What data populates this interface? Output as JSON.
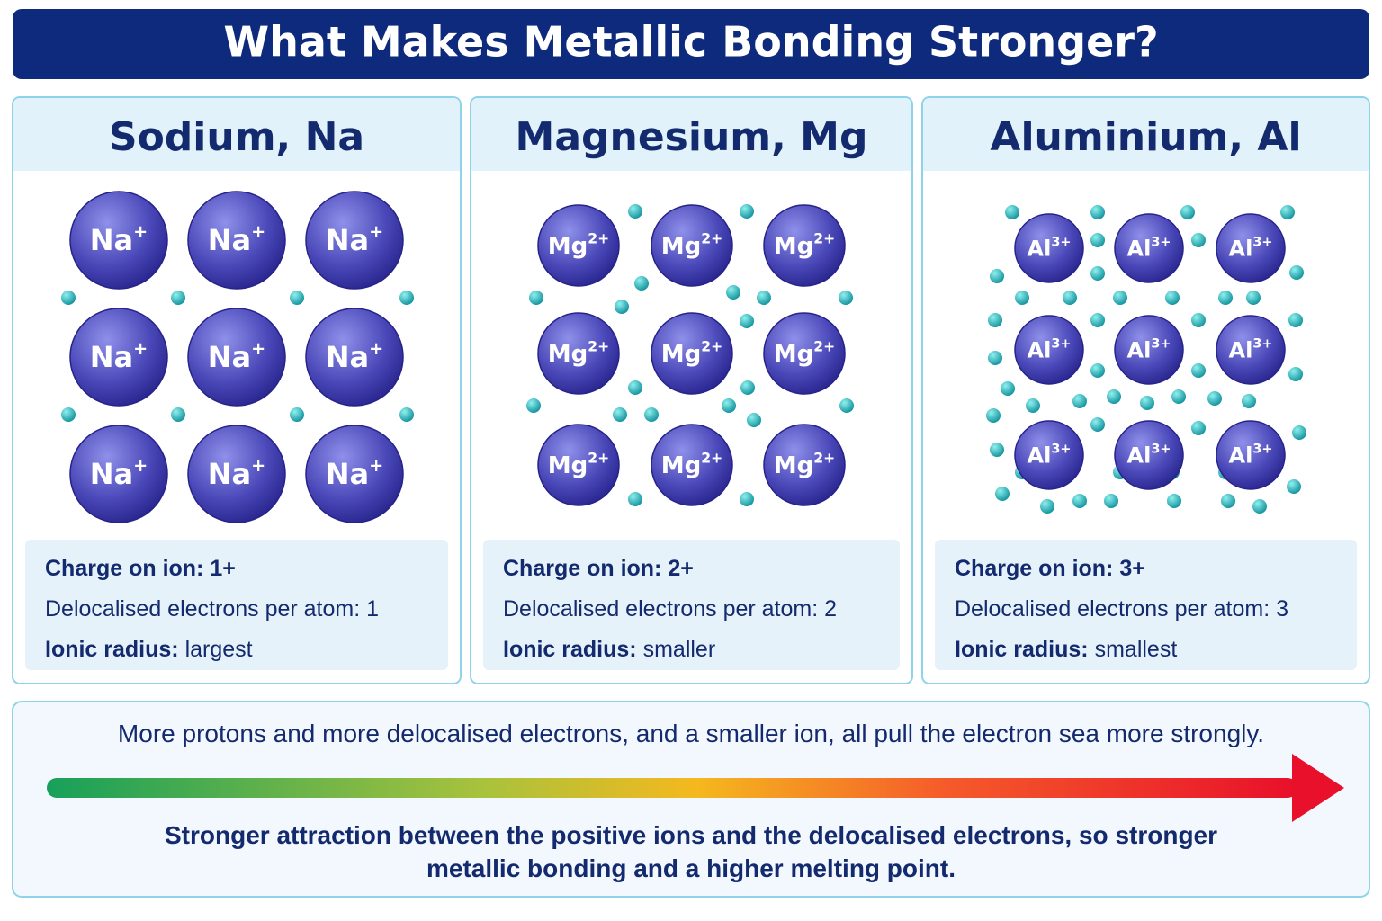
{
  "title": "What Makes Metallic Bonding Stronger?",
  "panels": [
    {
      "name": "Sodium, Na",
      "ion": {
        "symbol": "Na",
        "charge": "+"
      },
      "facts": [
        {
          "label": "Charge on ion:",
          "value": "1+"
        },
        {
          "label": "Delocalised electrons per atom:",
          "value": "1"
        },
        {
          "label": "Ionic radius:",
          "value": "largest"
        }
      ]
    },
    {
      "name": "Magnesium, Mg",
      "ion": {
        "symbol": "Mg",
        "charge": "2+"
      },
      "facts": [
        {
          "label": "Charge on ion:",
          "value": "2+"
        },
        {
          "label": "Delocalised electrons per atom:",
          "value": "2"
        },
        {
          "label": "Ionic radius:",
          "value": "smaller"
        }
      ]
    },
    {
      "name": "Aluminium, Al",
      "ion": {
        "symbol": "Al",
        "charge": "3+"
      },
      "facts": [
        {
          "label": "Charge on ion:",
          "value": "3+"
        },
        {
          "label": "Delocalised electrons per atom:",
          "value": "3"
        },
        {
          "label": "Ionic radius:",
          "value": "smallest"
        }
      ]
    }
  ],
  "footer": {
    "top": "More protons and more delocalised electrons, and a smaller ion, all pull the electron sea more strongly.",
    "bottom": "Stronger attraction between the positive ions and the delocalised electrons, so stronger metallic bonding and a higher melting point."
  }
}
